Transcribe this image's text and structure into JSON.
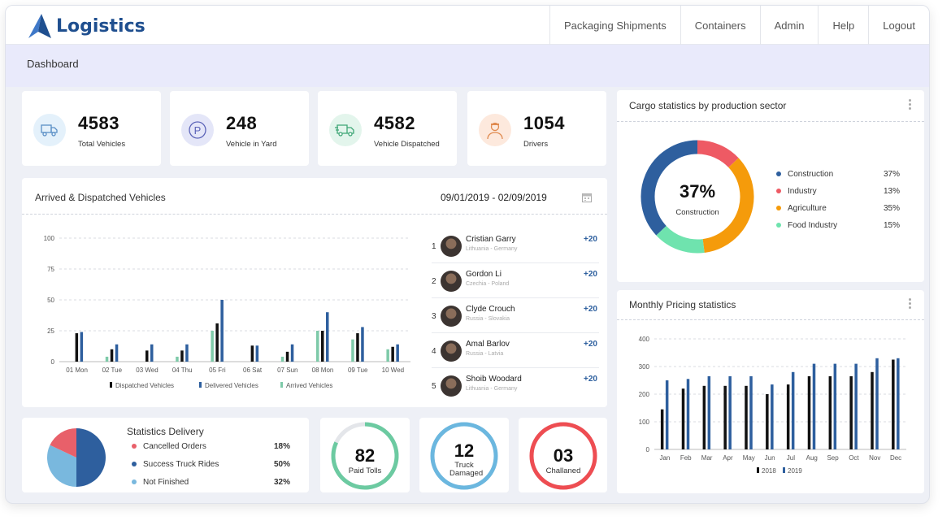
{
  "header": {
    "logo_text": "Logistics",
    "nav": [
      "Packaging Shipments",
      "Containers",
      "Admin",
      "Help",
      "Logout"
    ]
  },
  "breadcrumb": "Dashboard",
  "stats": [
    {
      "value": "4583",
      "label": "Total Vehicles",
      "icon": "truck-icon",
      "color": "#e4f1fb"
    },
    {
      "value": "248",
      "label": "Vehicle in Yard",
      "icon": "parking-icon",
      "color": "#e4e6f8"
    },
    {
      "value": "4582",
      "label": "Vehicle Dispatched",
      "icon": "delivery-truck-icon",
      "color": "#e3f5ec"
    },
    {
      "value": "1054",
      "label": "Drivers",
      "icon": "driver-icon",
      "color": "#fde9dd"
    }
  ],
  "vehicles_panel": {
    "title": "Arrived & Dispatched Vehicles",
    "date_range": "09/01/2019 - 02/09/2019"
  },
  "drivers": [
    {
      "rank": "1",
      "name": "Cristian Garry",
      "location": "Lithuania - Germany",
      "points": "+20"
    },
    {
      "rank": "2",
      "name": "Gordon Li",
      "location": "Czechia - Poland",
      "points": "+20"
    },
    {
      "rank": "3",
      "name": "Clyde Crouch",
      "location": "Russia - Slovakia",
      "points": "+20"
    },
    {
      "rank": "4",
      "name": "Amal Barlov",
      "location": "Russia - Latvia",
      "points": "+20"
    },
    {
      "rank": "5",
      "name": "Shoib Woodard",
      "location": "Lithuania - Germany",
      "points": "+20"
    }
  ],
  "cargo": {
    "title": "Cargo statistics by production sector",
    "center_value": "37%",
    "center_label": "Construction"
  },
  "pricing": {
    "title": "Monthly Pricing statistics"
  },
  "delivery": {
    "title": "Statistics Delivery",
    "rows": [
      {
        "label": "Cancelled Orders",
        "value": "18%",
        "color": "#e8606a"
      },
      {
        "label": "Success Truck Rides",
        "value": "50%",
        "color": "#2e5f9e"
      },
      {
        "label": "Not Finished",
        "value": "32%",
        "color": "#79b8de"
      }
    ]
  },
  "rings": [
    {
      "value": "82",
      "label": "Paid Tolls",
      "color": "#6ccaa1",
      "fraction": 0.82
    },
    {
      "value": "12",
      "label": "Truck Damaged",
      "color": "#6bb7df",
      "fraction": 1.0
    },
    {
      "value": "03",
      "label": "Challaned",
      "color": "#ee4d52",
      "fraction": 1.0
    }
  ],
  "chart_data": [
    {
      "type": "bar",
      "title": "Arrived & Dispatched Vehicles",
      "categories": [
        "01 Mon",
        "02 Tue",
        "03 Wed",
        "04 Thu",
        "05 Fri",
        "06 Sat",
        "07 Sun",
        "08 Mon",
        "09 Tue",
        "10 Wed"
      ],
      "ylim": [
        0,
        100
      ],
      "yticks": [
        0,
        25,
        50,
        75,
        100
      ],
      "series": [
        {
          "name": "Arrived Vehicles",
          "color": "#7ecaa9",
          "values": [
            0,
            4,
            0,
            4,
            25,
            0,
            4,
            25,
            18,
            10
          ]
        },
        {
          "name": "Dispatched Vehicles",
          "color": "#111111",
          "values": [
            23,
            10,
            9,
            9,
            31,
            13,
            8,
            25,
            23,
            12
          ]
        },
        {
          "name": "Delivered Vehicles",
          "color": "#2e5f9e",
          "values": [
            24,
            14,
            14,
            14,
            50,
            13,
            14,
            40,
            28,
            14
          ]
        }
      ],
      "legend": "bottom",
      "grid": true
    },
    {
      "type": "pie",
      "title": "Cargo statistics by production sector",
      "categories": [
        "Construction",
        "Industry",
        "Agriculture",
        "Food Industry"
      ],
      "values": [
        37,
        13,
        35,
        15
      ],
      "labels": [
        "37%",
        "13%",
        "35%",
        "15%"
      ],
      "colors": [
        "#2e5f9e",
        "#ee5a64",
        "#f59b0b",
        "#6fe3ae"
      ]
    },
    {
      "type": "bar",
      "title": "Monthly Pricing statistics",
      "categories": [
        "Jan",
        "Feb",
        "Mar",
        "Apr",
        "May",
        "Jun",
        "Jul",
        "Aug",
        "Sep",
        "Oct",
        "Nov",
        "Dec"
      ],
      "ylim": [
        0,
        400
      ],
      "yticks": [
        0,
        100,
        200,
        300,
        400
      ],
      "series": [
        {
          "name": "2018",
          "color": "#111111",
          "values": [
            145,
            220,
            230,
            230,
            230,
            200,
            235,
            265,
            265,
            265,
            280,
            325
          ]
        },
        {
          "name": "2019",
          "color": "#2e5f9e",
          "values": [
            250,
            255,
            265,
            265,
            265,
            235,
            280,
            310,
            310,
            310,
            330,
            330
          ]
        }
      ],
      "legend": "bottom",
      "grid": true
    },
    {
      "type": "pie",
      "title": "Statistics Delivery",
      "categories": [
        "Cancelled Orders",
        "Success Truck Rides",
        "Not Finished"
      ],
      "values": [
        18,
        50,
        32
      ],
      "colors": [
        "#e8606a",
        "#2e5f9e",
        "#79b8de"
      ]
    }
  ]
}
